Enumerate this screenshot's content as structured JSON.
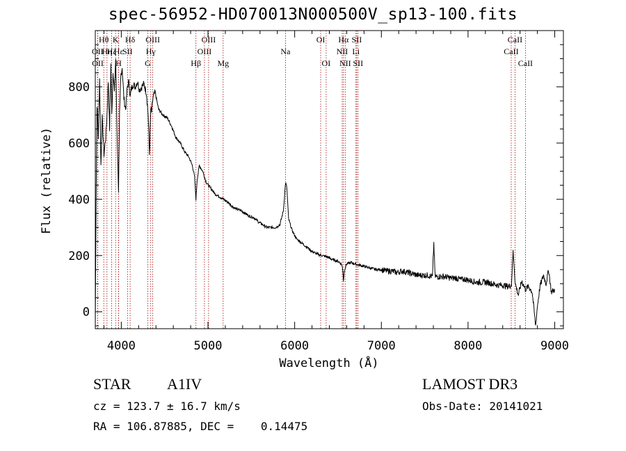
{
  "chart_data": {
    "type": "line",
    "title": "spec-56952-HD070013N000500V_sp13-100.fits",
    "xlabel": "Wavelength (Å)",
    "ylabel": "Flux (relative)",
    "xlim": [
      3700,
      9100
    ],
    "ylim": [
      -60,
      1000
    ],
    "x_ticks": [
      4000,
      5000,
      6000,
      7000,
      8000,
      9000
    ],
    "y_ticks": [
      0,
      200,
      400,
      600,
      800
    ],
    "series": [
      {
        "name": "flux",
        "x": [
          3700,
          3710,
          3720,
          3735,
          3750,
          3765,
          3780,
          3800,
          3820,
          3835,
          3850,
          3865,
          3880,
          3890,
          3905,
          3920,
          3935,
          3950,
          3968,
          3980,
          3995,
          4010,
          4030,
          4050,
          4070,
          4090,
          4102,
          4115,
          4135,
          4160,
          4185,
          4210,
          4235,
          4260,
          4290,
          4310,
          4325,
          4340,
          4350,
          4365,
          4390,
          4430,
          4480,
          4530,
          4580,
          4630,
          4680,
          4730,
          4780,
          4820,
          4845,
          4861,
          4875,
          4900,
          4940,
          4980,
          5030,
          5080,
          5130,
          5180,
          5230,
          5280,
          5330,
          5380,
          5430,
          5480,
          5530,
          5580,
          5630,
          5680,
          5730,
          5780,
          5830,
          5870,
          5895,
          5910,
          5930,
          5970,
          6020,
          6080,
          6140,
          6200,
          6260,
          6320,
          6380,
          6440,
          6500,
          6540,
          6555,
          6563,
          6575,
          6600,
          6650,
          6700,
          6760,
          6820,
          6880,
          6940,
          7000,
          7060,
          7120,
          7180,
          7240,
          7300,
          7360,
          7420,
          7480,
          7540,
          7590,
          7605,
          7620,
          7680,
          7740,
          7800,
          7860,
          7920,
          7980,
          8040,
          8100,
          8160,
          8220,
          8280,
          8340,
          8400,
          8460,
          8500,
          8520,
          8545,
          8580,
          8620,
          8660,
          8700,
          8740,
          8780,
          8800,
          8830,
          8870,
          8900,
          8930,
          8960,
          9000
        ],
        "y": [
          -50,
          420,
          740,
          620,
          830,
          520,
          690,
          560,
          620,
          700,
          820,
          650,
          880,
          700,
          860,
          780,
          900,
          650,
          430,
          700,
          840,
          870,
          760,
          720,
          800,
          820,
          760,
          790,
          810,
          800,
          820,
          790,
          800,
          810,
          780,
          700,
          560,
          720,
          710,
          760,
          780,
          720,
          700,
          690,
          660,
          620,
          600,
          570,
          550,
          520,
          480,
          400,
          470,
          520,
          500,
          460,
          440,
          420,
          410,
          400,
          390,
          375,
          365,
          360,
          350,
          340,
          335,
          320,
          310,
          300,
          300,
          300,
          310,
          360,
          460,
          440,
          330,
          290,
          260,
          245,
          230,
          215,
          205,
          200,
          195,
          185,
          180,
          170,
          150,
          110,
          150,
          170,
          175,
          170,
          165,
          160,
          155,
          150,
          150,
          145,
          145,
          140,
          145,
          140,
          135,
          130,
          130,
          130,
          125,
          245,
          125,
          125,
          125,
          120,
          120,
          115,
          115,
          110,
          105,
          105,
          105,
          100,
          95,
          95,
          90,
          95,
          215,
          100,
          60,
          110,
          80,
          90,
          70,
          -50,
          20,
          90,
          130,
          100,
          150,
          70,
          80
        ]
      }
    ],
    "spectral_lines": [
      {
        "label": "Hθ",
        "x": 3798,
        "row": 1
      },
      {
        "label": "OII",
        "x": 3727,
        "row": 2
      },
      {
        "label": "OII",
        "x": 3729,
        "row": 3
      },
      {
        "label": "Hη",
        "x": 3835,
        "row": 2
      },
      {
        "label": "Hζ",
        "x": 3889,
        "row": 2
      },
      {
        "label": "K",
        "x": 3934,
        "row": 1
      },
      {
        "label": "H",
        "x": 3969,
        "row": 3
      },
      {
        "label": "Hε",
        "x": 3970,
        "row": 2
      },
      {
        "label": "SII",
        "x": 4072,
        "row": 2
      },
      {
        "label": "Hδ",
        "x": 4102,
        "row": 1
      },
      {
        "label": "Hγ",
        "x": 4340,
        "row": 2
      },
      {
        "label": "G",
        "x": 4305,
        "row": 3
      },
      {
        "label": "OIII",
        "x": 4363,
        "row": 1
      },
      {
        "label": "Hβ",
        "x": 4861,
        "row": 3
      },
      {
        "label": "OIII",
        "x": 5007,
        "row": 1
      },
      {
        "label": "OIII",
        "x": 4959,
        "row": 2
      },
      {
        "label": "Mg",
        "x": 5175,
        "row": 3
      },
      {
        "label": "Na",
        "x": 5894,
        "row": 2
      },
      {
        "label": "OI",
        "x": 6300,
        "row": 1
      },
      {
        "label": "OI",
        "x": 6363,
        "row": 3
      },
      {
        "label": "Hα",
        "x": 6563,
        "row": 1
      },
      {
        "label": "NII",
        "x": 6548,
        "row": 2
      },
      {
        "label": "NII",
        "x": 6583,
        "row": 3
      },
      {
        "label": "SII",
        "x": 6716,
        "row": 1
      },
      {
        "label": "Li",
        "x": 6707,
        "row": 2
      },
      {
        "label": "SII",
        "x": 6731,
        "row": 3
      },
      {
        "label": "CaII",
        "x": 8542,
        "row": 1
      },
      {
        "label": "CaII",
        "x": 8498,
        "row": 2
      },
      {
        "label": "CaII",
        "x": 8662,
        "row": 3
      }
    ]
  },
  "info": {
    "object_class": "STAR",
    "subclass": "A1IV",
    "survey": "LAMOST DR3",
    "cz": "cz = 123.7 ± 16.7 km/s",
    "obs_date": "Obs-Date: 20141021",
    "coords": "RA = 106.87885, DEC =    0.14475"
  }
}
